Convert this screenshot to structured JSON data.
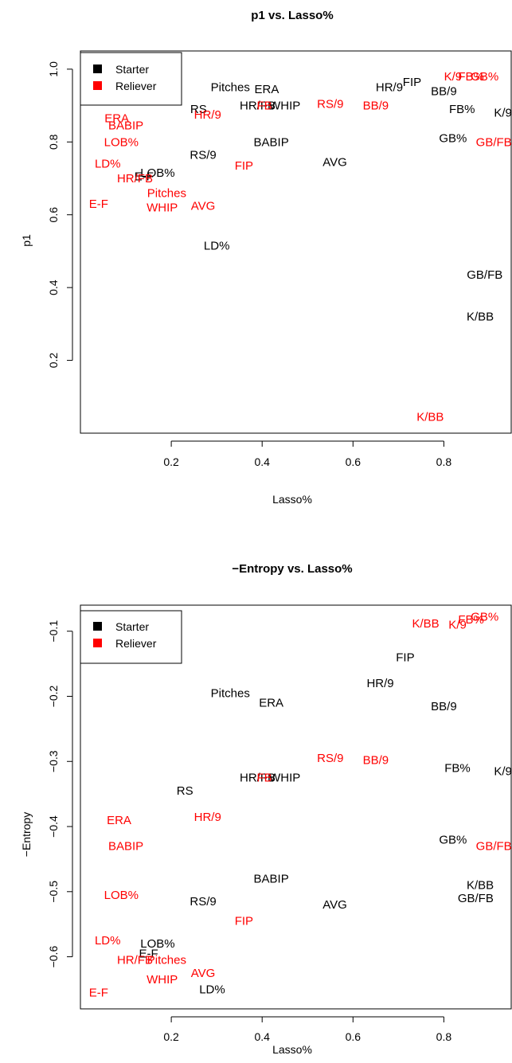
{
  "colors": {
    "Starter": "#000000",
    "Reliever": "#ff0000"
  },
  "chart_data": [
    {
      "type": "scatter",
      "title": "p1 vs. Lasso%",
      "xlabel": "Lasso%",
      "ylabel": "p1",
      "xlim": [
        0.0,
        0.95
      ],
      "ylim": [
        0.0,
        1.05
      ],
      "xticks": [
        {
          "v": 0.2,
          "label": "0.2"
        },
        {
          "v": 0.4,
          "label": "0.4"
        },
        {
          "v": 0.6,
          "label": "0.6"
        },
        {
          "v": 0.8,
          "label": "0.8"
        }
      ],
      "yticks": [
        {
          "v": 0.2,
          "label": "0.2"
        },
        {
          "v": 0.4,
          "label": "0.4"
        },
        {
          "v": 0.6,
          "label": "0.6"
        },
        {
          "v": 0.8,
          "label": "0.8"
        },
        {
          "v": 1.0,
          "label": "1.0"
        }
      ],
      "legend": {
        "position": "top-left",
        "entries": [
          {
            "name": "Starter",
            "color": "#000000"
          },
          {
            "name": "Reliever",
            "color": "#ff0000"
          }
        ]
      },
      "series": [
        {
          "name": "Starter",
          "color": "#000000",
          "points": [
            {
              "label": "Pitches",
              "x": 0.33,
              "y": 0.95
            },
            {
              "label": "ERA",
              "x": 0.41,
              "y": 0.945
            },
            {
              "label": "RS",
              "x": 0.26,
              "y": 0.89
            },
            {
              "label": "HR/FB",
              "x": 0.39,
              "y": 0.9
            },
            {
              "label": "WHIP",
              "x": 0.45,
              "y": 0.9
            },
            {
              "label": "HR/9",
              "x": 0.68,
              "y": 0.95
            },
            {
              "label": "FIP",
              "x": 0.73,
              "y": 0.965
            },
            {
              "label": "BB/9",
              "x": 0.8,
              "y": 0.94
            },
            {
              "label": "FB%",
              "x": 0.84,
              "y": 0.89
            },
            {
              "label": "K/9",
              "x": 0.93,
              "y": 0.88
            },
            {
              "label": "GB%",
              "x": 0.82,
              "y": 0.81
            },
            {
              "label": "BABIP",
              "x": 0.42,
              "y": 0.8
            },
            {
              "label": "RS/9",
              "x": 0.27,
              "y": 0.765
            },
            {
              "label": "AVG",
              "x": 0.56,
              "y": 0.745
            },
            {
              "label": "E-F",
              "x": 0.14,
              "y": 0.705
            },
            {
              "label": "LOB%",
              "x": 0.17,
              "y": 0.715
            },
            {
              "label": "LD%",
              "x": 0.3,
              "y": 0.515
            },
            {
              "label": "GB/FB",
              "x": 0.89,
              "y": 0.435
            },
            {
              "label": "K/BB",
              "x": 0.88,
              "y": 0.32
            }
          ]
        },
        {
          "name": "Reliever",
          "color": "#ff0000",
          "points": [
            {
              "label": "ERA",
              "x": 0.08,
              "y": 0.865
            },
            {
              "label": "BABIP",
              "x": 0.1,
              "y": 0.845
            },
            {
              "label": "LOB%",
              "x": 0.09,
              "y": 0.8
            },
            {
              "label": "LD%",
              "x": 0.06,
              "y": 0.74
            },
            {
              "label": "HR/FB",
              "x": 0.12,
              "y": 0.7
            },
            {
              "label": "Pitches",
              "x": 0.19,
              "y": 0.66
            },
            {
              "label": "WHIP",
              "x": 0.18,
              "y": 0.62
            },
            {
              "label": "AVG",
              "x": 0.27,
              "y": 0.625
            },
            {
              "label": "E-F",
              "x": 0.04,
              "y": 0.63
            },
            {
              "label": "HR/9",
              "x": 0.28,
              "y": 0.875
            },
            {
              "label": "FB",
              "x": 0.405,
              "y": 0.9
            },
            {
              "label": "RS/9",
              "x": 0.55,
              "y": 0.905
            },
            {
              "label": "BB/9",
              "x": 0.65,
              "y": 0.9
            },
            {
              "label": "FIP",
              "x": 0.36,
              "y": 0.735
            },
            {
              "label": "K/9",
              "x": 0.82,
              "y": 0.98
            },
            {
              "label": "FB%",
              "x": 0.86,
              "y": 0.98
            },
            {
              "label": "GB%",
              "x": 0.89,
              "y": 0.98
            },
            {
              "label": "GB/FB",
              "x": 0.91,
              "y": 0.8
            },
            {
              "label": "K/BB",
              "x": 0.77,
              "y": 0.045
            }
          ]
        }
      ]
    },
    {
      "type": "scatter",
      "title": "−Entropy vs. Lasso%",
      "xlabel": "Lasso%",
      "ylabel": "−Entropy",
      "xlim": [
        0.0,
        0.95
      ],
      "ylim": [
        -0.68,
        -0.06
      ],
      "xticks": [
        {
          "v": 0.2,
          "label": "0.2"
        },
        {
          "v": 0.4,
          "label": "0.4"
        },
        {
          "v": 0.6,
          "label": "0.6"
        },
        {
          "v": 0.8,
          "label": "0.8"
        }
      ],
      "yticks": [
        {
          "v": -0.6,
          "label": "−0.6"
        },
        {
          "v": -0.5,
          "label": "−0.5"
        },
        {
          "v": -0.4,
          "label": "−0.4"
        },
        {
          "v": -0.3,
          "label": "−0.3"
        },
        {
          "v": -0.2,
          "label": "−0.2"
        },
        {
          "v": -0.1,
          "label": "−0.1"
        }
      ],
      "legend": {
        "position": "top-left",
        "entries": [
          {
            "name": "Starter",
            "color": "#000000"
          },
          {
            "name": "Reliever",
            "color": "#ff0000"
          }
        ]
      },
      "series": [
        {
          "name": "Starter",
          "color": "#000000",
          "points": [
            {
              "label": "FIP",
              "x": 0.715,
              "y": -0.14
            },
            {
              "label": "HR/9",
              "x": 0.66,
              "y": -0.18
            },
            {
              "label": "Pitches",
              "x": 0.33,
              "y": -0.195
            },
            {
              "label": "ERA",
              "x": 0.42,
              "y": -0.21
            },
            {
              "label": "BB/9",
              "x": 0.8,
              "y": -0.215
            },
            {
              "label": "FB%",
              "x": 0.83,
              "y": -0.31
            },
            {
              "label": "K/9",
              "x": 0.93,
              "y": -0.315
            },
            {
              "label": "HR/FB",
              "x": 0.39,
              "y": -0.325
            },
            {
              "label": "WHIP",
              "x": 0.45,
              "y": -0.325
            },
            {
              "label": "RS",
              "x": 0.23,
              "y": -0.345
            },
            {
              "label": "GB%",
              "x": 0.82,
              "y": -0.42
            },
            {
              "label": "BABIP",
              "x": 0.42,
              "y": -0.48
            },
            {
              "label": "K/BB",
              "x": 0.88,
              "y": -0.49
            },
            {
              "label": "GB/FB",
              "x": 0.87,
              "y": -0.51
            },
            {
              "label": "RS/9",
              "x": 0.27,
              "y": -0.515
            },
            {
              "label": "AVG",
              "x": 0.56,
              "y": -0.52
            },
            {
              "label": "LOB%",
              "x": 0.17,
              "y": -0.58
            },
            {
              "label": "E-F",
              "x": 0.15,
              "y": -0.595
            },
            {
              "label": "LD%",
              "x": 0.29,
              "y": -0.65
            }
          ]
        },
        {
          "name": "Reliever",
          "color": "#ff0000",
          "points": [
            {
              "label": "K/BB",
              "x": 0.76,
              "y": -0.088
            },
            {
              "label": "K/9",
              "x": 0.83,
              "y": -0.09
            },
            {
              "label": "FB%",
              "x": 0.86,
              "y": -0.082
            },
            {
              "label": "GB%",
              "x": 0.89,
              "y": -0.078
            },
            {
              "label": "RS/9",
              "x": 0.55,
              "y": -0.295
            },
            {
              "label": "BB/9",
              "x": 0.65,
              "y": -0.298
            },
            {
              "label": "FB",
              "x": 0.405,
              "y": -0.325
            },
            {
              "label": "HR/9",
              "x": 0.28,
              "y": -0.385
            },
            {
              "label": "ERA",
              "x": 0.085,
              "y": -0.39
            },
            {
              "label": "BABIP",
              "x": 0.1,
              "y": -0.43
            },
            {
              "label": "GB/FB",
              "x": 0.91,
              "y": -0.43
            },
            {
              "label": "LOB%",
              "x": 0.09,
              "y": -0.505
            },
            {
              "label": "FIP",
              "x": 0.36,
              "y": -0.545
            },
            {
              "label": "LD%",
              "x": 0.06,
              "y": -0.575
            },
            {
              "label": "HR/FB",
              "x": 0.12,
              "y": -0.605
            },
            {
              "label": "Pitches",
              "x": 0.19,
              "y": -0.605
            },
            {
              "label": "AVG",
              "x": 0.27,
              "y": -0.625
            },
            {
              "label": "WHIP",
              "x": 0.18,
              "y": -0.635
            },
            {
              "label": "E-F",
              "x": 0.04,
              "y": -0.655
            }
          ]
        }
      ]
    }
  ]
}
